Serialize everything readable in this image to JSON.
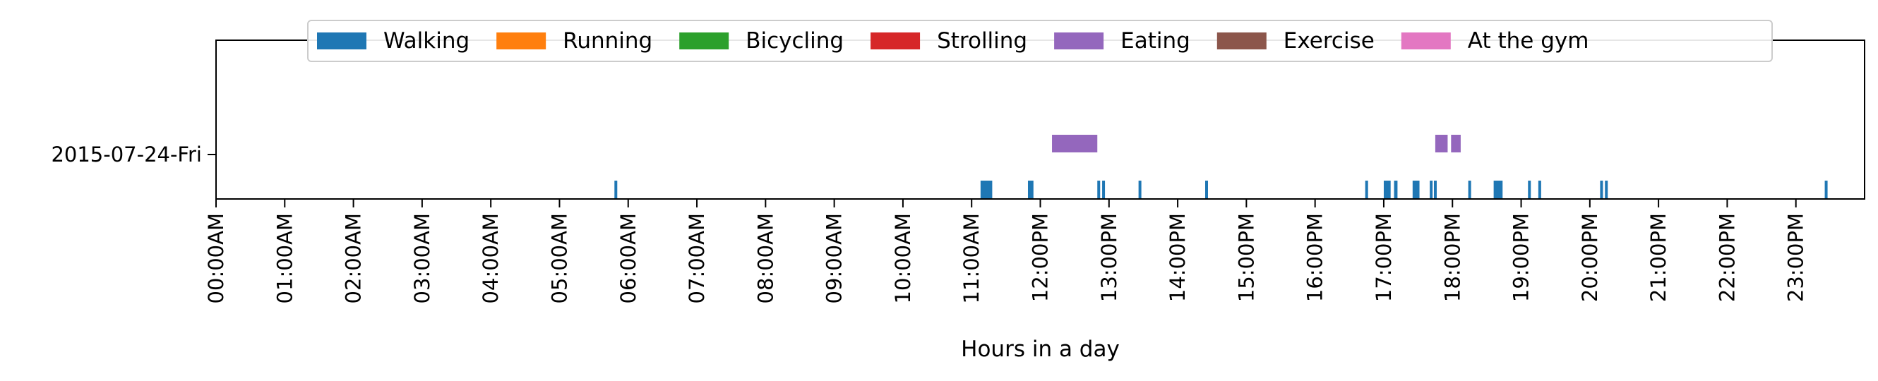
{
  "chart_data": {
    "type": "timeline",
    "xlabel": "Hours in a day",
    "ylabel": "",
    "title": "",
    "x_range_hours": [
      0,
      24
    ],
    "x_ticks": [
      "00:00AM",
      "01:00AM",
      "02:00AM",
      "03:00AM",
      "04:00AM",
      "05:00AM",
      "06:00AM",
      "07:00AM",
      "08:00AM",
      "09:00AM",
      "10:00AM",
      "11:00AM",
      "12:00PM",
      "13:00PM",
      "14:00PM",
      "15:00PM",
      "16:00PM",
      "17:00PM",
      "18:00PM",
      "19:00PM",
      "20:00PM",
      "21:00PM",
      "22:00PM",
      "23:00PM"
    ],
    "y_ticks": [
      "2015-07-24-Fri"
    ],
    "legend_position": "top-center",
    "grid": false,
    "series": [
      {
        "name": "Walking",
        "color": "#1f77b4",
        "segments": [
          [
            5.8,
            5.83
          ],
          [
            11.13,
            11.3
          ],
          [
            11.82,
            11.9
          ],
          [
            12.83,
            12.86
          ],
          [
            12.9,
            12.93
          ],
          [
            13.43,
            13.46
          ],
          [
            14.4,
            14.44
          ],
          [
            16.73,
            16.76
          ],
          [
            17.0,
            17.1
          ],
          [
            17.15,
            17.2
          ],
          [
            17.42,
            17.52
          ],
          [
            17.67,
            17.7
          ],
          [
            17.73,
            17.76
          ],
          [
            18.23,
            18.26
          ],
          [
            18.6,
            18.73
          ],
          [
            19.1,
            19.13
          ],
          [
            19.25,
            19.28
          ],
          [
            20.15,
            20.18
          ],
          [
            20.22,
            20.25
          ],
          [
            23.42,
            23.45
          ]
        ]
      },
      {
        "name": "Running",
        "color": "#ff7f0e",
        "segments": []
      },
      {
        "name": "Bicycling",
        "color": "#2ca02c",
        "segments": []
      },
      {
        "name": "Strolling",
        "color": "#d62728",
        "segments": []
      },
      {
        "name": "Eating",
        "color": "#9467bd",
        "segments": [
          [
            12.17,
            12.83
          ],
          [
            17.75,
            17.93
          ],
          [
            17.98,
            18.12
          ]
        ]
      },
      {
        "name": "Exercise",
        "color": "#8c564b",
        "segments": []
      },
      {
        "name": "At the gym",
        "color": "#e377c2",
        "segments": []
      }
    ]
  }
}
